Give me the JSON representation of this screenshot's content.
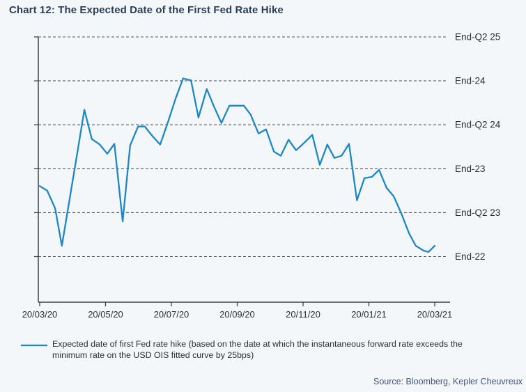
{
  "title": "Chart 12: The Expected Date of the First Fed Rate Hike",
  "legend": {
    "lines": [
      "Expected date of first Fed rate hike (based on the date at which the instantaneous forward rate exceeds the",
      "minimum rate on the USD OIS fitted curve by 25bps)"
    ]
  },
  "source": "Source: Bloomberg, Kepler Cheuvreux",
  "colors": {
    "line": "#1d87c4",
    "grid": "#50555a",
    "axis": "#3e4245",
    "tick_text": "#2e2e2e",
    "title_text": "#2b3e54",
    "source_text": "#40587a",
    "background": "#f3f7fa"
  },
  "chart_data": {
    "type": "line",
    "title": "Chart 12: The Expected Date of the First Fed Rate Hike",
    "xlabel": "",
    "ylabel": "",
    "grid": "dashed horizontal",
    "legend_position": "bottom-left",
    "x_tick_labels": [
      "20/03/20",
      "20/05/20",
      "20/07/20",
      "20/09/20",
      "20/11/20",
      "20/01/21",
      "20/03/21"
    ],
    "y_axis": {
      "unit": "quarters after End-2022",
      "ticks": [
        {
          "value": 0,
          "label": "End-22"
        },
        {
          "value": 2,
          "label": "End-Q2 23"
        },
        {
          "value": 4,
          "label": "End-23"
        },
        {
          "value": 6,
          "label": "End-Q2 24"
        },
        {
          "value": 8,
          "label": "End-24"
        },
        {
          "value": 10,
          "label": "End-Q2 25"
        }
      ],
      "axis_min": -2.1,
      "axis_max": 10
    },
    "series": [
      {
        "name": "Expected date of first Fed rate hike (based on the date at which the instantaneous forward rate exceeds the minimum rate on the USD OIS fitted curve by 25bps)",
        "x_unit": "fraction of axis from 20/03/20 to 20/03/21",
        "points": [
          [
            0.0,
            3.21
          ],
          [
            0.019,
            3.0
          ],
          [
            0.039,
            2.2
          ],
          [
            0.056,
            0.49
          ],
          [
            0.076,
            2.65
          ],
          [
            0.095,
            4.71
          ],
          [
            0.113,
            6.68
          ],
          [
            0.132,
            5.35
          ],
          [
            0.152,
            5.1
          ],
          [
            0.171,
            4.68
          ],
          [
            0.189,
            5.13
          ],
          [
            0.21,
            1.6
          ],
          [
            0.229,
            5.06
          ],
          [
            0.249,
            5.92
          ],
          [
            0.266,
            5.92
          ],
          [
            0.286,
            5.47
          ],
          [
            0.305,
            5.1
          ],
          [
            0.325,
            6.14
          ],
          [
            0.344,
            7.19
          ],
          [
            0.363,
            8.11
          ],
          [
            0.383,
            8.02
          ],
          [
            0.402,
            6.33
          ],
          [
            0.423,
            7.63
          ],
          [
            0.441,
            6.84
          ],
          [
            0.46,
            6.08
          ],
          [
            0.48,
            6.87
          ],
          [
            0.497,
            6.87
          ],
          [
            0.517,
            6.87
          ],
          [
            0.534,
            6.46
          ],
          [
            0.554,
            5.6
          ],
          [
            0.573,
            5.79
          ],
          [
            0.593,
            4.78
          ],
          [
            0.61,
            4.59
          ],
          [
            0.63,
            5.32
          ],
          [
            0.649,
            4.84
          ],
          [
            0.67,
            5.19
          ],
          [
            0.69,
            5.54
          ],
          [
            0.709,
            4.17
          ],
          [
            0.728,
            5.1
          ],
          [
            0.746,
            4.49
          ],
          [
            0.764,
            4.59
          ],
          [
            0.783,
            5.13
          ],
          [
            0.803,
            2.56
          ],
          [
            0.822,
            3.57
          ],
          [
            0.841,
            3.63
          ],
          [
            0.859,
            3.95
          ],
          [
            0.878,
            3.13
          ],
          [
            0.896,
            2.75
          ],
          [
            0.915,
            1.98
          ],
          [
            0.935,
            1.06
          ],
          [
            0.952,
            0.49
          ],
          [
            0.972,
            0.27
          ],
          [
            0.984,
            0.21
          ],
          [
            1.0,
            0.49
          ]
        ]
      }
    ]
  }
}
